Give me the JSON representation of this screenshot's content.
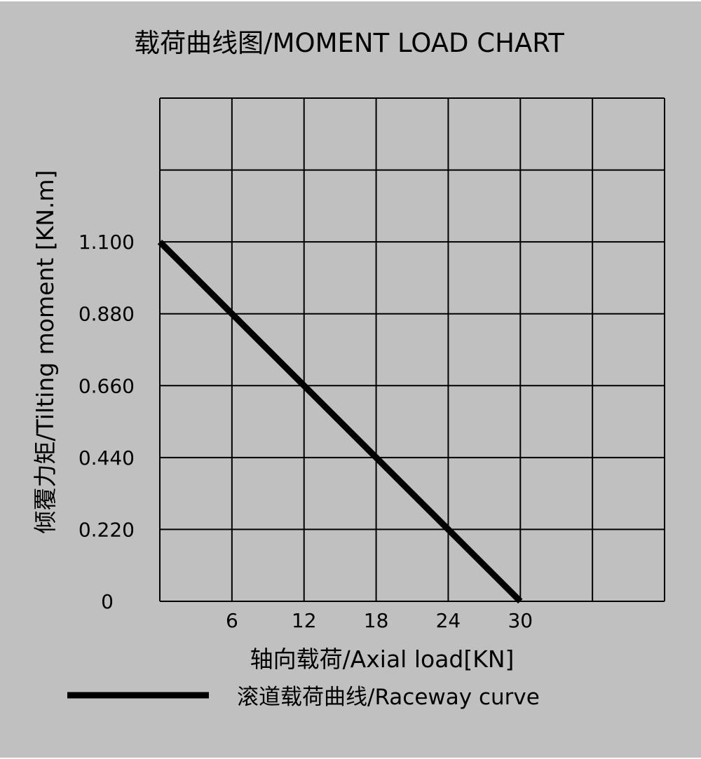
{
  "chart_data": {
    "type": "line",
    "title": "载荷曲线图/MOMENT LOAD CHART",
    "xlabel": "轴向载荷/Axial load[KN]",
    "ylabel": "倾覆力矩/Tilting moment [KN.m]",
    "xlim": [
      0,
      42
    ],
    "ylim": [
      0,
      1.54
    ],
    "grid": true,
    "x_ticks": [
      6,
      12,
      18,
      24,
      30
    ],
    "x_tick_labels": [
      "6",
      "12",
      "18",
      "24",
      "30"
    ],
    "y_ticks": [
      0,
      0.22,
      0.44,
      0.66,
      0.88,
      1.1
    ],
    "y_tick_labels": [
      "0",
      "0.220",
      "0.440",
      "0.660",
      "0.880",
      "1.100"
    ],
    "legend_position": "bottom",
    "series": [
      {
        "name": "滚道载荷曲线/Raceway curve",
        "color": "#000000",
        "x": [
          0,
          30
        ],
        "y": [
          1.1,
          0
        ]
      }
    ]
  }
}
